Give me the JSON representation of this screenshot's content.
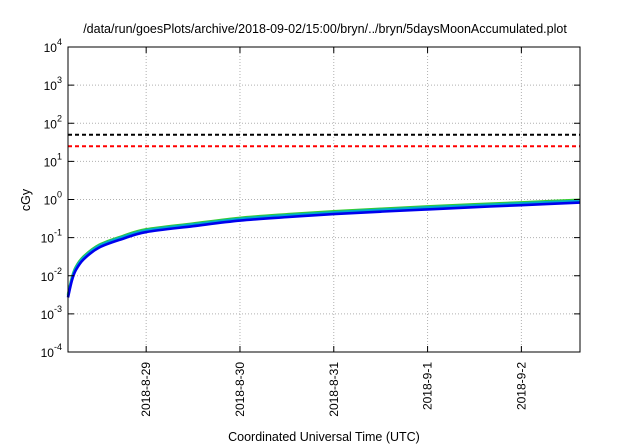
{
  "chart_data": {
    "type": "line",
    "title": "/data/run/goesPlots/archive/2018-09-02/15:00/bryn/../bryn/5daysMoonAccumulated.plot",
    "xlabel": "Coordinated Universal Time (UTC)",
    "ylabel": "cGy",
    "yscale": "log",
    "xlim": [
      "2018-08-28 04:00",
      "2018-09-02 15:00"
    ],
    "ylim": [
      0.0001,
      10000
    ],
    "x_ticks": [
      "2018-8-29",
      "2018-8-30",
      "2018-8-31",
      "2018-9-1",
      "2018-9-2"
    ],
    "y_ticks": [
      {
        "value": 0.0001,
        "base": "10",
        "exp": "-4"
      },
      {
        "value": 0.001,
        "base": "10",
        "exp": "-3"
      },
      {
        "value": 0.01,
        "base": "10",
        "exp": "-2"
      },
      {
        "value": 0.1,
        "base": "10",
        "exp": "-1"
      },
      {
        "value": 1,
        "base": "10",
        "exp": "0"
      },
      {
        "value": 10,
        "base": "10",
        "exp": "1"
      },
      {
        "value": 100,
        "base": "10",
        "exp": "2"
      },
      {
        "value": 1000,
        "base": "10",
        "exp": "3"
      },
      {
        "value": 10000,
        "base": "10",
        "exp": "4"
      }
    ],
    "grid": true,
    "reference_lines": [
      {
        "value": 50,
        "color": "#000000",
        "style": "dashed"
      },
      {
        "value": 25,
        "color": "#ff0000",
        "style": "dashed"
      }
    ],
    "series": [
      {
        "color": "#33cc33",
        "x": [
          "2018-08-28 04:00",
          "2018-08-28 05:00",
          "2018-08-28 06:00",
          "2018-08-28 08:00",
          "2018-08-28 12:00",
          "2018-08-28 18:00",
          "2018-08-29 00:00",
          "2018-08-29 12:00",
          "2018-08-30 00:00",
          "2018-08-30 12:00",
          "2018-08-31 00:00",
          "2018-08-31 12:00",
          "2018-09-01 00:00",
          "2018-09-01 12:00",
          "2018-09-02 00:00",
          "2018-09-02 15:00"
        ],
        "values": [
          0.0032,
          0.009,
          0.017,
          0.032,
          0.065,
          0.11,
          0.165,
          0.235,
          0.33,
          0.41,
          0.49,
          0.57,
          0.66,
          0.75,
          0.84,
          0.98
        ]
      },
      {
        "color": "#00aacc",
        "x": [
          "2018-08-28 04:00",
          "2018-08-28 05:00",
          "2018-08-28 06:00",
          "2018-08-28 08:00",
          "2018-08-28 12:00",
          "2018-08-28 18:00",
          "2018-08-29 00:00",
          "2018-08-29 12:00",
          "2018-08-30 00:00",
          "2018-08-30 12:00",
          "2018-08-31 00:00",
          "2018-08-31 12:00",
          "2018-09-01 00:00",
          "2018-09-01 12:00",
          "2018-09-02 00:00",
          "2018-09-02 15:00"
        ],
        "values": [
          0.003,
          0.0085,
          0.016,
          0.03,
          0.061,
          0.104,
          0.155,
          0.222,
          0.31,
          0.385,
          0.46,
          0.535,
          0.62,
          0.7,
          0.79,
          0.92
        ]
      },
      {
        "color": "#0000ee",
        "x": [
          "2018-08-28 04:00",
          "2018-08-28 05:00",
          "2018-08-28 06:00",
          "2018-08-28 08:00",
          "2018-08-28 12:00",
          "2018-08-28 18:00",
          "2018-08-29 00:00",
          "2018-08-29 12:00",
          "2018-08-30 00:00",
          "2018-08-30 12:00",
          "2018-08-31 00:00",
          "2018-08-31 12:00",
          "2018-09-01 00:00",
          "2018-09-01 12:00",
          "2018-09-02 00:00",
          "2018-09-02 15:00"
        ],
        "values": [
          0.0027,
          0.0075,
          0.014,
          0.027,
          0.055,
          0.093,
          0.14,
          0.2,
          0.28,
          0.345,
          0.415,
          0.48,
          0.55,
          0.63,
          0.71,
          0.83
        ]
      }
    ]
  }
}
